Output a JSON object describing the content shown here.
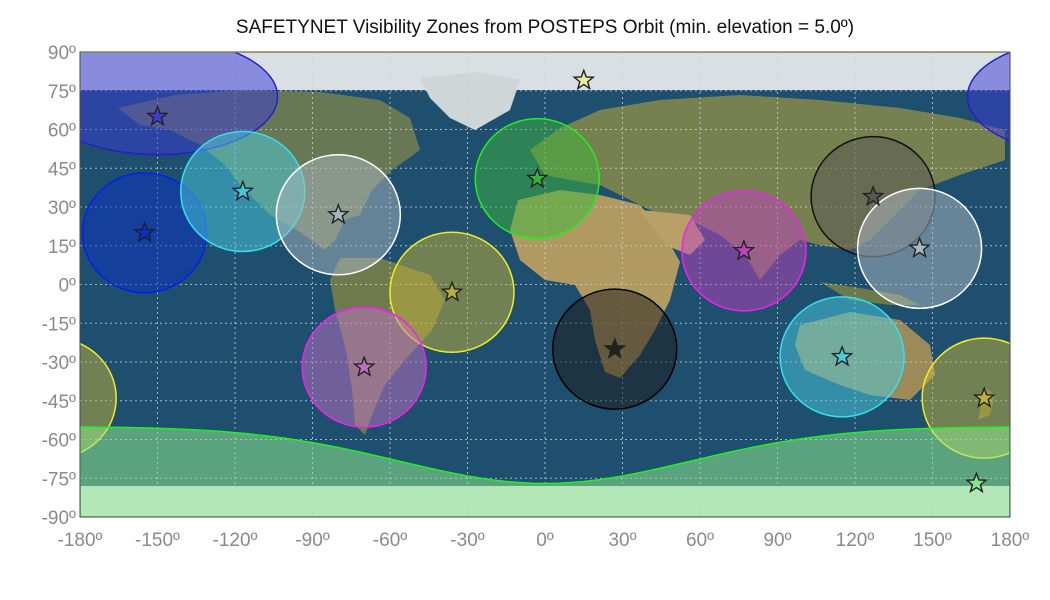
{
  "title": "SAFETYNET Visibility Zones from POSTEPS Orbit (min. elevation = 5.0º)",
  "colors": {
    "ocean": "#1e4f6e",
    "land": "#6e7a52",
    "desert": "#b9a06a",
    "ice": "#dfe6ea",
    "grid": "#bfc6cc",
    "frame": "#4a4a4a"
  },
  "axes": {
    "x_ticks": [
      "-180º",
      "-150º",
      "-120º",
      "-90º",
      "-60º",
      "-30º",
      "0º",
      "30º",
      "60º",
      "90º",
      "120º",
      "150º",
      "180º"
    ],
    "y_ticks": [
      "90º",
      "75º",
      "60º",
      "45º",
      "30º",
      "15º",
      "0º",
      "-15º",
      "-30º",
      "-45º",
      "-60º",
      "-75º",
      "-90º"
    ],
    "x_range": [
      -180,
      180
    ],
    "y_range": [
      -90,
      90
    ],
    "grid": true
  },
  "zones": [
    {
      "lon": -150,
      "lat": 65,
      "color": "#3a3ad6",
      "stroke": "#2222cc",
      "type": "polar-north"
    },
    {
      "lon": -155,
      "lat": 20,
      "color": "#0a2fc8",
      "stroke": "#0022ee"
    },
    {
      "lon": -117,
      "lat": 36,
      "color": "#49cde0",
      "stroke": "#33e0f0"
    },
    {
      "lon": -80,
      "lat": 27,
      "color": "#aab8c0",
      "stroke": "#ffffff"
    },
    {
      "lon": -36,
      "lat": -3,
      "color": "#c4b43a",
      "stroke": "#eeee22"
    },
    {
      "lon": -70,
      "lat": -32,
      "color": "#c070c8",
      "stroke": "#ee22ee"
    },
    {
      "lon": -3,
      "lat": 41,
      "color": "#3cb83c",
      "stroke": "#22ee22"
    },
    {
      "lon": 15,
      "lat": 79,
      "color": "#ece8a0",
      "stroke": "#eeee22",
      "type": "polar-north-band"
    },
    {
      "lon": 27,
      "lat": -25,
      "color": "#1a1a1a",
      "stroke": "#000000"
    },
    {
      "lon": 77,
      "lat": 13,
      "color": "#c040c0",
      "stroke": "#ee22ee"
    },
    {
      "lon": 127,
      "lat": 34,
      "color": "#555555",
      "stroke": "#111111"
    },
    {
      "lon": 145,
      "lat": 14,
      "color": "#b0bcc4",
      "stroke": "#ffffff"
    },
    {
      "lon": 115,
      "lat": -28,
      "color": "#49cde0",
      "stroke": "#33e0f0"
    },
    {
      "lon": 170,
      "lat": -44,
      "color": "#c4b43a",
      "stroke": "#eeee22"
    },
    {
      "lon": 167,
      "lat": -77,
      "color": "#8ee88e",
      "stroke": "#22ee22",
      "type": "polar-south-band"
    }
  ]
}
